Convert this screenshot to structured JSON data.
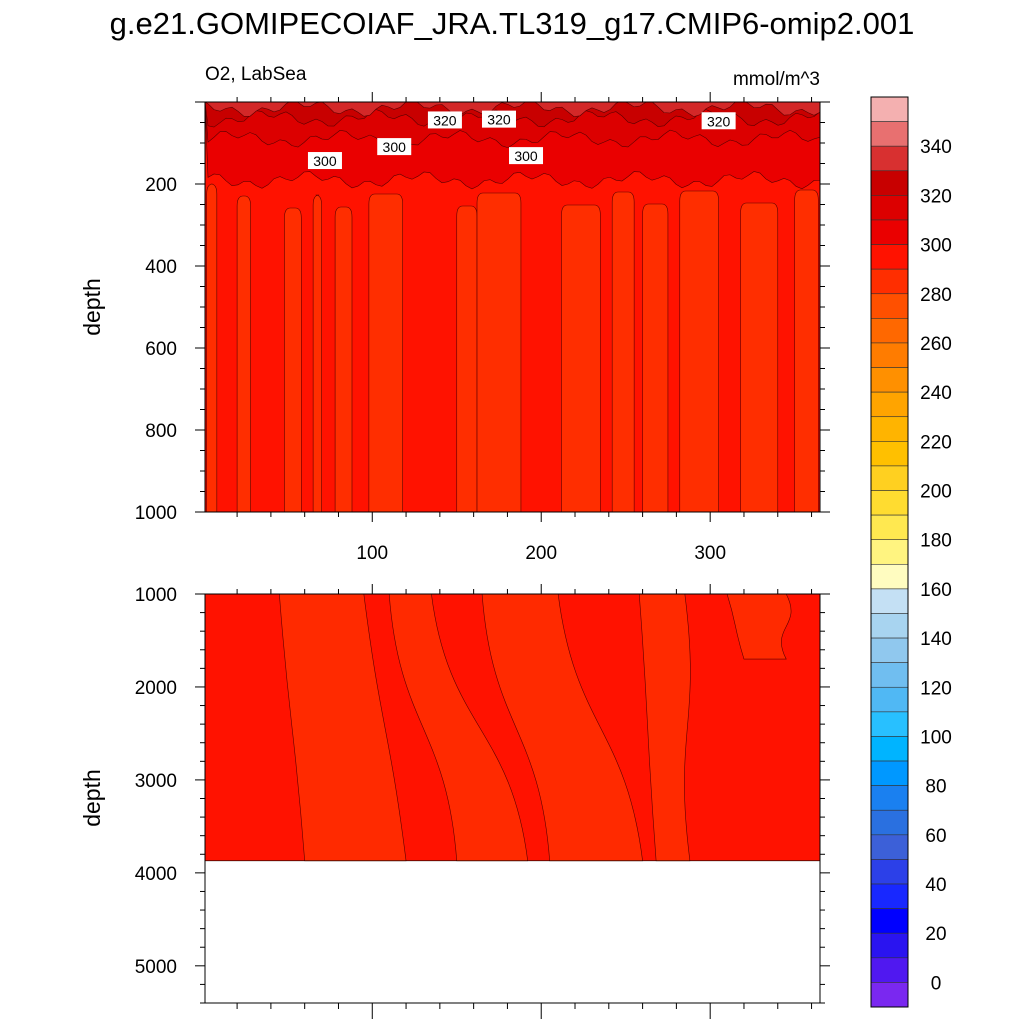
{
  "title": "g.e21.GOMIPECOIAF_JRA.TL319_g17.CMIP6-omip2.001",
  "subtitle_left": "O2, LabSea",
  "subtitle_right": "mmol/m^3",
  "colors": {
    "ocean_upper": "#ff1200",
    "ocean_band": "#ff2e00",
    "deep_dark": "#ea0000",
    "deep_light": "#ff2a00",
    "surface_1": "#d32828",
    "surface_2": "#c80000",
    "surface_3": "#dc0000",
    "line": "#5a0000"
  },
  "chart_data": [
    {
      "type": "contour",
      "panel": "upper",
      "variable": "O2",
      "region": "LabSea",
      "units": "mmol/m^3",
      "ylabel": "depth",
      "xlim": [
        1,
        365
      ],
      "ylim": [
        1000,
        0
      ],
      "xticks": [
        100,
        200,
        300
      ],
      "yticks": [
        200,
        400,
        600,
        800,
        1000
      ],
      "background_level": 300,
      "upper_layers": [
        {
          "level": 340,
          "depth": [
            0,
            15
          ]
        },
        {
          "level": 330,
          "depth": [
            15,
            40
          ]
        },
        {
          "level": 320,
          "depth": [
            40,
            90
          ]
        },
        {
          "level": 310,
          "depth": [
            90,
            190
          ]
        }
      ],
      "band_level": 290,
      "band_top_depth": 200,
      "bands_x": [
        [
          2,
          8
        ],
        [
          20,
          28
        ],
        [
          48,
          58
        ],
        [
          65,
          70
        ],
        [
          78,
          88
        ],
        [
          98,
          118
        ],
        [
          150,
          162
        ],
        [
          162,
          188
        ],
        [
          212,
          235
        ],
        [
          242,
          255
        ],
        [
          260,
          275
        ],
        [
          282,
          305
        ],
        [
          318,
          340
        ],
        [
          350,
          364
        ]
      ],
      "contour_labels": [
        {
          "text": "320",
          "x": 143,
          "y": 45
        },
        {
          "text": "320",
          "x": 175,
          "y": 43
        },
        {
          "text": "320",
          "x": 305,
          "y": 47
        },
        {
          "text": "300",
          "x": 113,
          "y": 110
        },
        {
          "text": "300",
          "x": 191,
          "y": 132
        },
        {
          "text": "300",
          "x": 72,
          "y": 144
        }
      ]
    },
    {
      "type": "contour",
      "panel": "lower",
      "ylabel": "depth",
      "xlim": [
        1,
        365
      ],
      "ylim": [
        5400,
        1000
      ],
      "yticks": [
        1000,
        2000,
        3000,
        4000,
        5000
      ],
      "ocean_bottom_depth": 3870,
      "background_level": 300,
      "patch_level": 290,
      "patches": [
        {
          "top": [
            [
              45,
              1000
            ],
            [
              95,
              1000
            ]
          ],
          "bottom": [
            [
              60,
              3870
            ],
            [
              120,
              3870
            ]
          ]
        },
        {
          "top": [
            [
              110,
              1000
            ],
            [
              135,
              1000
            ]
          ],
          "bottom": [
            [
              150,
              3870
            ],
            [
              192,
              3870
            ]
          ]
        },
        {
          "top": [
            [
              165,
              1000
            ],
            [
              210,
              1000
            ]
          ],
          "bottom": [
            [
              205,
              3870
            ],
            [
              260,
              3870
            ]
          ]
        },
        {
          "top": [
            [
              258,
              1000
            ],
            [
              285,
              1000
            ]
          ],
          "bottom": [
            [
              268,
              3870
            ],
            [
              288,
              3870
            ]
          ]
        },
        {
          "top": [
            [
              310,
              1000
            ],
            [
              345,
              1000
            ]
          ],
          "bottom": [
            [
              320,
              1700
            ],
            [
              345,
              1700
            ]
          ]
        }
      ]
    },
    {
      "type": "colorbar",
      "labels": [
        "340",
        "320",
        "300",
        "280",
        "260",
        "240",
        "220",
        "200",
        "180",
        "160",
        "140",
        "120",
        "100",
        "80",
        "60",
        "40",
        "20",
        "0"
      ],
      "levels_top_to_bottom": [
        ">350",
        "340-350",
        "330-340",
        "320-330",
        "310-320",
        "300-310",
        "290-300",
        "280-290",
        "270-280",
        "260-270",
        "250-260",
        "240-250",
        "230-240",
        "220-230",
        "210-220",
        "200-210",
        "190-200",
        "180-190",
        "170-180",
        "160-170",
        "150-160",
        "140-150",
        "130-140",
        "120-130",
        "110-120",
        "100-110",
        "90-100",
        "80-90",
        "70-80",
        "60-70",
        "50-60",
        "40-50",
        "30-40",
        "20-30",
        "10-20",
        "0-10",
        "<0"
      ],
      "colors_top_to_bottom": [
        "#f4b0b0",
        "#e87070",
        "#d83030",
        "#c80000",
        "#dc0000",
        "#ea0000",
        "#ff1200",
        "#ff2e00",
        "#ff5000",
        "#ff6800",
        "#ff7c00",
        "#ff9000",
        "#ffa400",
        "#ffb400",
        "#ffc000",
        "#ffd020",
        "#ffdc30",
        "#ffe850",
        "#fff480",
        "#fffcc0",
        "#c4e0f4",
        "#a8d4f0",
        "#90c8ee",
        "#70bef0",
        "#50b8f4",
        "#28c0ff",
        "#00b4ff",
        "#0098ff",
        "#1a80f0",
        "#2a70e0",
        "#3c60d8",
        "#2c40e8",
        "#1828ff",
        "#0000ff",
        "#2a14f0",
        "#5018f0",
        "#7a28f0"
      ]
    }
  ]
}
